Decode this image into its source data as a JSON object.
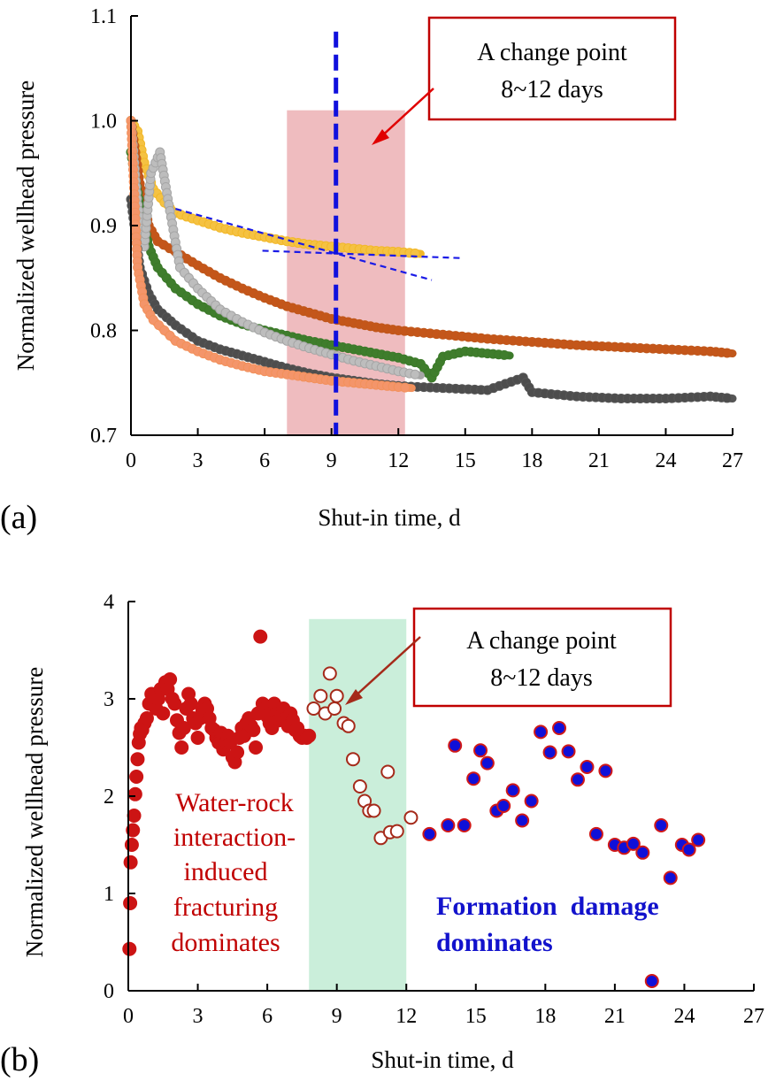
{
  "chart_data": [
    {
      "panel": "(a)",
      "type": "line",
      "xlabel": "Shut-in time, d",
      "ylabel": "Normalized  wellhead  pressure",
      "xlim": [
        0,
        27
      ],
      "ylim": [
        0.7,
        1.1
      ],
      "x_ticks": [
        "0",
        "3",
        "6",
        "9",
        "12",
        "15",
        "18",
        "21",
        "24",
        "27"
      ],
      "y_ticks": [
        "0.7",
        "0.8",
        "0.9",
        "1.0",
        "1.1"
      ],
      "highlight_range": [
        7.0,
        12.3
      ],
      "change_point_x": 9.2,
      "callout": {
        "line1": "A change point",
        "line2": "8~12 days"
      },
      "trend_lines": [
        {
          "name": "early trend",
          "points": [
            [
              2.0,
              0.916
            ],
            [
              13.5,
              0.848
            ]
          ]
        },
        {
          "name": "late trend",
          "points": [
            [
              5.9,
              0.876
            ],
            [
              14.8,
              0.869
            ]
          ]
        }
      ],
      "series": [
        {
          "name": "yellow well",
          "color": "#f2b829",
          "dot": "#f5c242",
          "x": [
            0,
            0.3,
            0.6,
            1.0,
            1.5,
            2.0,
            3,
            4,
            5,
            6,
            7,
            8,
            9,
            10,
            11,
            12,
            13
          ],
          "y": [
            1.0,
            0.99,
            0.96,
            0.935,
            0.922,
            0.912,
            0.905,
            0.898,
            0.893,
            0.889,
            0.885,
            0.882,
            0.88,
            0.878,
            0.876,
            0.875,
            0.873
          ]
        },
        {
          "name": "brown well",
          "color": "#c0571a",
          "dot": "#c4561a",
          "x": [
            0,
            0.4,
            0.8,
            1.2,
            2,
            3,
            4,
            5,
            6,
            7,
            8,
            9,
            10,
            11,
            12,
            14,
            16,
            18,
            20,
            22,
            24,
            26,
            27
          ],
          "y": [
            1.0,
            0.94,
            0.9,
            0.885,
            0.875,
            0.862,
            0.85,
            0.84,
            0.831,
            0.823,
            0.817,
            0.811,
            0.807,
            0.803,
            0.8,
            0.796,
            0.792,
            0.789,
            0.786,
            0.784,
            0.782,
            0.78,
            0.778
          ]
        },
        {
          "name": "green well",
          "color": "#3c7a2a",
          "dot": "#3f7d2c",
          "x": [
            0,
            0.4,
            0.8,
            1.2,
            2,
            3,
            4,
            5,
            6,
            7,
            8,
            9,
            10,
            11,
            12,
            13,
            13.5,
            14,
            15,
            16,
            17
          ],
          "y": [
            0.97,
            0.92,
            0.88,
            0.86,
            0.84,
            0.825,
            0.814,
            0.806,
            0.8,
            0.795,
            0.79,
            0.786,
            0.782,
            0.778,
            0.774,
            0.768,
            0.755,
            0.775,
            0.78,
            0.778,
            0.776
          ]
        },
        {
          "name": "grey well",
          "color": "#a6a6a6",
          "dot": "#bdbdbd",
          "x": [
            0,
            0.3,
            0.6,
            0.9,
            1.3,
            1.7,
            2.2,
            3,
            4,
            5,
            6,
            7,
            8,
            9,
            10,
            11,
            12,
            13
          ],
          "y": [
            1.0,
            0.92,
            0.88,
            0.95,
            0.97,
            0.92,
            0.86,
            0.84,
            0.82,
            0.808,
            0.798,
            0.79,
            0.783,
            0.777,
            0.771,
            0.766,
            0.761,
            0.757
          ]
        },
        {
          "name": "dark grey well",
          "color": "#555555",
          "dot": "#4d4d4d",
          "x": [
            0,
            0.4,
            0.8,
            1.2,
            2,
            3,
            4,
            5,
            6,
            7,
            8,
            9,
            10,
            11,
            12,
            14,
            16,
            17.6,
            18,
            20,
            22,
            24,
            26,
            27
          ],
          "y": [
            0.925,
            0.86,
            0.835,
            0.82,
            0.805,
            0.79,
            0.782,
            0.776,
            0.77,
            0.764,
            0.759,
            0.755,
            0.752,
            0.749,
            0.747,
            0.745,
            0.743,
            0.755,
            0.741,
            0.737,
            0.735,
            0.735,
            0.737,
            0.735
          ]
        },
        {
          "name": "orange well",
          "color": "#f2915c",
          "dot": "#f4956a",
          "x": [
            0,
            0.3,
            0.6,
            1.0,
            1.5,
            2,
            3,
            4,
            5,
            6,
            7,
            8,
            9,
            10,
            11,
            12,
            12.6
          ],
          "y": [
            1.0,
            0.86,
            0.825,
            0.81,
            0.8,
            0.79,
            0.78,
            0.772,
            0.766,
            0.761,
            0.758,
            0.755,
            0.752,
            0.75,
            0.748,
            0.746,
            0.745
          ]
        }
      ]
    },
    {
      "panel": "(b)",
      "type": "scatter",
      "xlabel": "Shut-in time, d",
      "ylabel": "Normalized  wellhead  pressure",
      "xlim": [
        0,
        27
      ],
      "ylim": [
        0,
        4
      ],
      "x_ticks": [
        "0",
        "3",
        "6",
        "9",
        "12",
        "15",
        "18",
        "21",
        "24",
        "27"
      ],
      "y_ticks": [
        "0",
        "1",
        "2",
        "3",
        "4"
      ],
      "highlight_range": [
        7.8,
        12.0
      ],
      "callout": {
        "line1": "A change point",
        "line2": "8~12 days"
      },
      "left_annotation": [
        "Water-rock",
        "interaction-",
        "induced",
        "fracturing",
        "dominates"
      ],
      "right_annotation": [
        "Formation  damage",
        "dominates"
      ],
      "series": [
        {
          "name": "early phase (filled red)",
          "x": [
            0.05,
            0.08,
            0.1,
            0.15,
            0.2,
            0.25,
            0.3,
            0.35,
            0.4,
            0.45,
            0.5,
            0.55,
            0.6,
            0.7,
            0.8,
            0.9,
            1.0,
            1.1,
            1.2,
            1.3,
            1.4,
            1.5,
            1.6,
            1.7,
            1.8,
            1.9,
            2.0,
            2.1,
            2.2,
            2.3,
            2.4,
            2.5,
            2.6,
            2.7,
            2.8,
            2.9,
            3.0,
            3.1,
            3.2,
            3.3,
            3.4,
            3.5,
            3.6,
            3.7,
            3.8,
            3.9,
            4.0,
            4.1,
            4.2,
            4.3,
            4.4,
            4.5,
            4.6,
            4.7,
            4.8,
            4.9,
            5.0,
            5.1,
            5.2,
            5.3,
            5.4,
            5.5,
            5.6,
            5.7,
            5.8,
            5.9,
            6.0,
            6.1,
            6.2,
            6.3,
            6.4,
            6.5,
            6.6,
            6.7,
            6.8,
            6.9,
            7.0,
            7.1,
            7.2,
            7.3,
            7.4,
            7.5,
            7.6,
            7.7,
            7.8
          ],
          "y": [
            0.43,
            0.9,
            1.32,
            1.5,
            1.65,
            1.8,
            2.02,
            2.2,
            2.38,
            2.55,
            2.64,
            2.7,
            2.68,
            2.75,
            2.8,
            2.95,
            3.05,
            2.95,
            2.9,
            3.0,
            3.1,
            2.85,
            3.17,
            3.1,
            3.2,
            3.0,
            2.95,
            2.78,
            2.65,
            2.5,
            2.7,
            2.9,
            3.05,
            2.95,
            2.8,
            2.75,
            2.6,
            2.8,
            2.88,
            2.95,
            2.9,
            2.8,
            2.7,
            2.68,
            2.6,
            2.55,
            2.65,
            2.48,
            2.55,
            2.62,
            2.55,
            2.4,
            2.35,
            2.45,
            2.6,
            2.7,
            2.62,
            2.75,
            2.8,
            2.72,
            2.68,
            2.5,
            2.85,
            3.64,
            2.95,
            2.9,
            2.82,
            2.75,
            2.7,
            2.95,
            2.85,
            2.78,
            2.82,
            2.9,
            2.8,
            2.72,
            2.85,
            2.78,
            2.68,
            2.7,
            2.62,
            2.6,
            2.62,
            2.6,
            2.62
          ]
        },
        {
          "name": "transition (open brown)",
          "x": [
            8.0,
            8.3,
            8.5,
            8.7,
            8.9,
            9.0,
            9.3,
            9.5,
            9.7,
            10.0,
            10.2,
            10.4,
            10.6,
            10.9,
            11.2,
            11.3,
            11.6,
            12.2
          ],
          "y": [
            2.9,
            3.03,
            2.85,
            3.26,
            2.9,
            3.03,
            2.75,
            2.72,
            2.38,
            2.1,
            1.95,
            1.85,
            1.85,
            1.57,
            2.25,
            1.63,
            1.64,
            1.78
          ]
        },
        {
          "name": "late phase (blue filled, red edge)",
          "x": [
            13.0,
            13.8,
            14.1,
            14.5,
            14.9,
            15.2,
            15.5,
            15.9,
            16.2,
            16.6,
            17.0,
            17.4,
            17.8,
            18.2,
            18.6,
            19.0,
            19.4,
            19.8,
            20.2,
            20.6,
            21.0,
            21.4,
            21.8,
            22.2,
            22.6,
            23.0,
            23.4,
            23.9,
            24.2,
            24.6
          ],
          "y": [
            1.61,
            1.7,
            2.52,
            1.7,
            2.18,
            2.47,
            2.34,
            1.85,
            1.9,
            2.06,
            1.75,
            1.95,
            2.66,
            2.45,
            2.7,
            2.46,
            2.17,
            2.3,
            1.61,
            2.26,
            1.5,
            1.47,
            1.51,
            1.42,
            0.1,
            1.7,
            1.16,
            1.5,
            1.45,
            1.55
          ]
        }
      ]
    }
  ],
  "labels": {
    "panel_a": "(a)",
    "panel_b": "(b)"
  }
}
